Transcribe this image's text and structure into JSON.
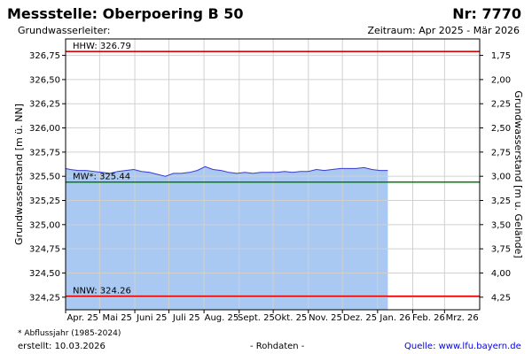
{
  "header": {
    "title": "Messstelle: Oberpoering B 50",
    "nr": "Nr: 7770",
    "aquifer": "Grundwasserleiter:",
    "period": "Zeitraum: Apr 2025 - Mär 2026"
  },
  "footer": {
    "footnote": "* Abflussjahr (1985-2024)",
    "created": "erstellt:  10.03.2026",
    "rawdata": "- Rohdaten -",
    "source": "Quelle: www.lfu.bayern.de"
  },
  "colors": {
    "fill": "#a9c9f2",
    "line": "#3a3ad0",
    "hhw": "#e00000",
    "nnw": "#e00000",
    "mw": "#008000",
    "grid": "#d0d0d0"
  },
  "chart_data": {
    "type": "area",
    "ylabel": "Grundwasserstand [m ü. NN]",
    "y2label": "Grundwasserstand [m u. Gelände]",
    "ylim": [
      324.12,
      326.92
    ],
    "y2lim": [
      4.38,
      1.58
    ],
    "y_ticks": [
      "326,75",
      "326,50",
      "326,25",
      "326,00",
      "325,75",
      "325,50",
      "325,25",
      "325,00",
      "324,75",
      "324,50",
      "324,25"
    ],
    "y_tick_values": [
      326.75,
      326.5,
      326.25,
      326.0,
      325.75,
      325.5,
      325.25,
      325.0,
      324.75,
      324.5,
      324.25
    ],
    "y2_ticks": [
      "1,75",
      "2,00",
      "2,25",
      "2,50",
      "2,75",
      "3,00",
      "3,25",
      "3,50",
      "3,75",
      "4,00",
      "4,25"
    ],
    "y2_tick_values": [
      1.75,
      2.0,
      2.25,
      2.5,
      2.75,
      3.0,
      3.25,
      3.5,
      3.75,
      4.0,
      4.25
    ],
    "x_range": [
      "2025-04-01",
      "2026-04-01"
    ],
    "x_ticks": [
      {
        "date": "2025-04-01",
        "label": "Apr. 25"
      },
      {
        "date": "2025-05-01",
        "label": "Mai 25"
      },
      {
        "date": "2025-06-01",
        "label": "Juni 25"
      },
      {
        "date": "2025-07-01",
        "label": "Juli 25"
      },
      {
        "date": "2025-08-01",
        "label": "Aug. 25"
      },
      {
        "date": "2025-09-01",
        "label": "Sept. 25"
      },
      {
        "date": "2025-10-01",
        "label": "Okt. 25"
      },
      {
        "date": "2025-11-01",
        "label": "Nov. 25"
      },
      {
        "date": "2025-12-01",
        "label": "Dez. 25"
      },
      {
        "date": "2026-01-01",
        "label": "Jan. 26"
      },
      {
        "date": "2026-02-01",
        "label": "Feb. 26"
      },
      {
        "date": "2026-03-01",
        "label": "Mrz. 26"
      }
    ],
    "reference_lines": [
      {
        "key": "hhw",
        "label": "HHW: 326.79",
        "value": 326.79
      },
      {
        "key": "mw",
        "label": "MW*: 325.44",
        "value": 325.44
      },
      {
        "key": "nnw",
        "label": "NNW: 324.26",
        "value": 324.26
      }
    ],
    "series": [
      {
        "x": [
          "2025-03-29",
          "2025-04-05",
          "2025-04-12",
          "2025-04-19",
          "2025-04-26",
          "2025-05-03",
          "2025-05-10",
          "2025-05-17",
          "2025-05-24",
          "2025-05-31",
          "2025-06-07",
          "2025-06-14",
          "2025-06-21",
          "2025-06-28",
          "2025-07-05",
          "2025-07-12",
          "2025-07-19",
          "2025-07-26",
          "2025-08-02",
          "2025-08-09",
          "2025-08-16",
          "2025-08-23",
          "2025-08-30",
          "2025-09-06",
          "2025-09-13",
          "2025-09-20",
          "2025-09-27",
          "2025-10-04",
          "2025-10-11",
          "2025-10-18",
          "2025-10-25",
          "2025-11-01",
          "2025-11-08",
          "2025-11-15",
          "2025-11-22",
          "2025-11-29",
          "2025-12-06",
          "2025-12-13",
          "2025-12-20",
          "2025-12-27",
          "2026-01-03",
          "2026-01-10"
        ],
        "y": [
          325.58,
          325.57,
          325.56,
          325.56,
          325.55,
          325.54,
          325.53,
          325.55,
          325.56,
          325.57,
          325.55,
          325.54,
          325.52,
          325.5,
          325.53,
          325.53,
          325.54,
          325.56,
          325.6,
          325.57,
          325.56,
          325.54,
          325.53,
          325.54,
          325.53,
          325.54,
          325.54,
          325.54,
          325.55,
          325.54,
          325.55,
          325.55,
          325.57,
          325.56,
          325.57,
          325.58,
          325.58,
          325.58,
          325.59,
          325.57,
          325.56,
          325.56
        ]
      }
    ]
  }
}
